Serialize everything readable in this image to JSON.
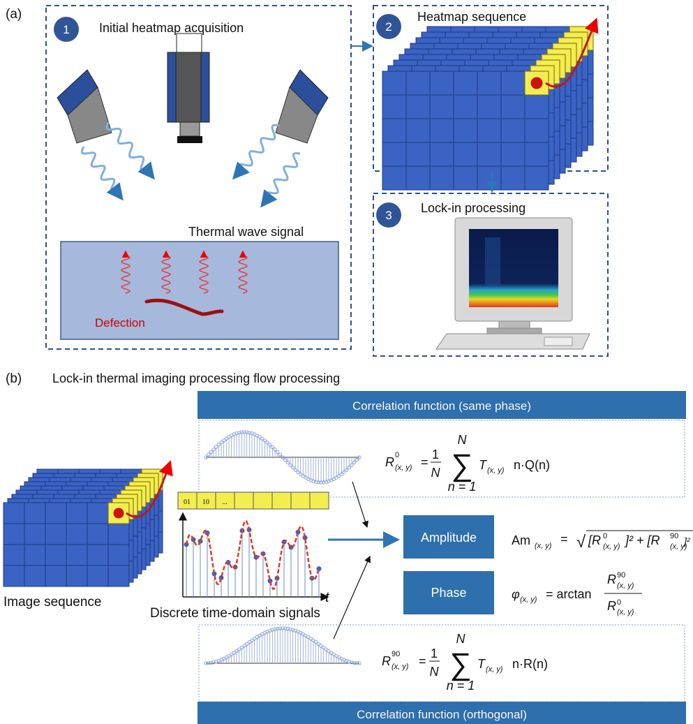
{
  "panel_a": {
    "label": "(a)",
    "step1": {
      "number": "1",
      "title": "Initial heatmap acquisition",
      "signal_label": "Thermal wave signal",
      "defect_label": "Defection"
    },
    "step2": {
      "number": "2",
      "title": "Heatmap sequence"
    },
    "step3": {
      "number": "3",
      "title": "Lock-in processing"
    }
  },
  "panel_b": {
    "label": "(b)",
    "title": "Lock-in thermal imaging processing flow processing",
    "same_phase_header": "Correlation function (same phase)",
    "orthogonal_header": "Correlation function (orthogonal)",
    "image_sequence_label": "Image sequence",
    "signal_label": "Discrete time-domain signals",
    "time_axis": "t",
    "frame_cells": [
      "01",
      "10",
      "..."
    ],
    "amplitude_button": "Amplitude",
    "phase_button": "Phase",
    "formula_same": {
      "lhs": "R",
      "sup": "0",
      "sub": "(x, y)",
      "eq": "=",
      "num": "1",
      "den": "N",
      "sum_top": "N",
      "sigma": "∑",
      "sum_bottom": "n = 1",
      "term": "T",
      "term_sub": "(x, y)",
      "tail": "n·Q(n)"
    },
    "formula_orth": {
      "lhs": "R",
      "sup": "90",
      "sub": "(x, y)",
      "eq": "=",
      "num": "1",
      "den": "N",
      "sum_top": "N",
      "sigma": "∑",
      "sum_bottom": "n = 1",
      "term": "T",
      "term_sub": "(x, y)",
      "tail": "n·R(n)"
    },
    "formula_amp": {
      "lhs": "Am",
      "sub": "(x, y)",
      "eq": "=",
      "root": "√",
      "p1": "[R",
      "sup1": "0",
      "sub1": "(x, y)",
      "p2": "]² + [R",
      "sup2": "90",
      "sub2": "(x, y)",
      "p3": "]²"
    },
    "formula_phase": {
      "lhs": "φ",
      "sub": "(x, y)",
      "eq": "= arctan",
      "num": "R",
      "num_sup": "90",
      "num_sub": "(x, y)",
      "den": "R",
      "den_sup": "0",
      "den_sub": "(x, y)"
    }
  }
}
